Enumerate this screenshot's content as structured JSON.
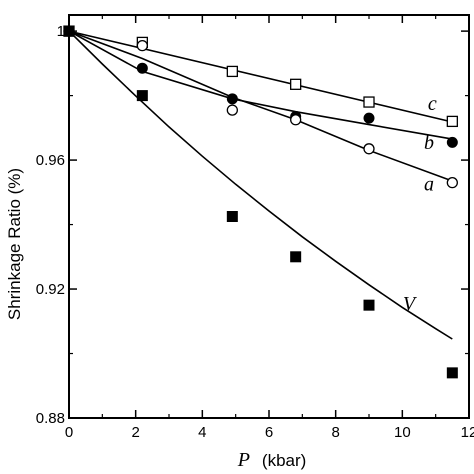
{
  "chart_data": {
    "type": "scatter",
    "xlabel_symbol": "P",
    "xlabel_unit": "(kbar)",
    "ylabel": "Shrinkage Ratio (%)",
    "xlim": [
      0,
      12
    ],
    "ylim": [
      0.88,
      1.005
    ],
    "x_ticks": [
      0,
      2,
      4,
      6,
      8,
      10,
      12
    ],
    "x_tick_labels": [
      "0",
      "2",
      "4",
      "6",
      "8",
      "10",
      "12"
    ],
    "y_ticks": [
      0.88,
      0.92,
      0.96,
      1.0
    ],
    "y_tick_labels": [
      "0.88",
      "0.92",
      "0.96",
      "1"
    ],
    "grid": false,
    "series": [
      {
        "name": "c",
        "marker": "open-square",
        "x": [
          0,
          2.2,
          4.9,
          6.8,
          9.0,
          11.5
        ],
        "y": [
          1.0,
          0.9965,
          0.9875,
          0.9835,
          0.978,
          0.972
        ],
        "label_at": [
          10.9,
          0.9755
        ]
      },
      {
        "name": "b",
        "marker": "filled-circle",
        "x": [
          0,
          2.2,
          4.9,
          6.8,
          9.0,
          11.5
        ],
        "y": [
          1.0,
          0.9885,
          0.979,
          0.9735,
          0.973,
          0.9655
        ],
        "label_at": [
          10.8,
          0.9635
        ]
      },
      {
        "name": "a",
        "marker": "open-circle",
        "x": [
          0,
          2.2,
          4.9,
          6.8,
          9.0,
          11.5
        ],
        "y": [
          1.0,
          0.9955,
          0.9755,
          0.9725,
          0.9635,
          0.953
        ],
        "label_at": [
          10.8,
          0.9505
        ]
      },
      {
        "name": "V",
        "marker": "filled-square",
        "x": [
          0,
          2.2,
          4.9,
          6.8,
          9.0,
          11.5
        ],
        "y": [
          1.0,
          0.98,
          0.9425,
          0.93,
          0.915,
          0.894
        ],
        "label_at": [
          10.2,
          0.9135
        ]
      }
    ],
    "fit_lines": [
      {
        "series": "c",
        "x": [
          0,
          11.5
        ],
        "y": [
          1.0,
          0.9718
        ]
      },
      {
        "series": "b",
        "x": [
          0,
          2.2,
          4.9,
          6.8,
          9.0,
          11.5
        ],
        "y": [
          1.0,
          0.9875,
          0.979,
          0.975,
          0.971,
          0.9665
        ]
      },
      {
        "series": "a",
        "x": [
          0,
          2.2,
          4.9,
          6.8,
          9.0,
          11.5
        ],
        "y": [
          1.0,
          0.9915,
          0.9795,
          0.9725,
          0.963,
          0.9535
        ]
      },
      {
        "series": "V",
        "x": [
          0,
          1,
          2,
          3,
          4,
          5,
          6,
          7,
          8,
          9,
          10,
          11,
          11.5
        ],
        "y": [
          1.0,
          0.9898,
          0.9799,
          0.9703,
          0.9612,
          0.9525,
          0.9442,
          0.9362,
          0.9286,
          0.9213,
          0.9143,
          0.9077,
          0.9045
        ]
      }
    ]
  }
}
